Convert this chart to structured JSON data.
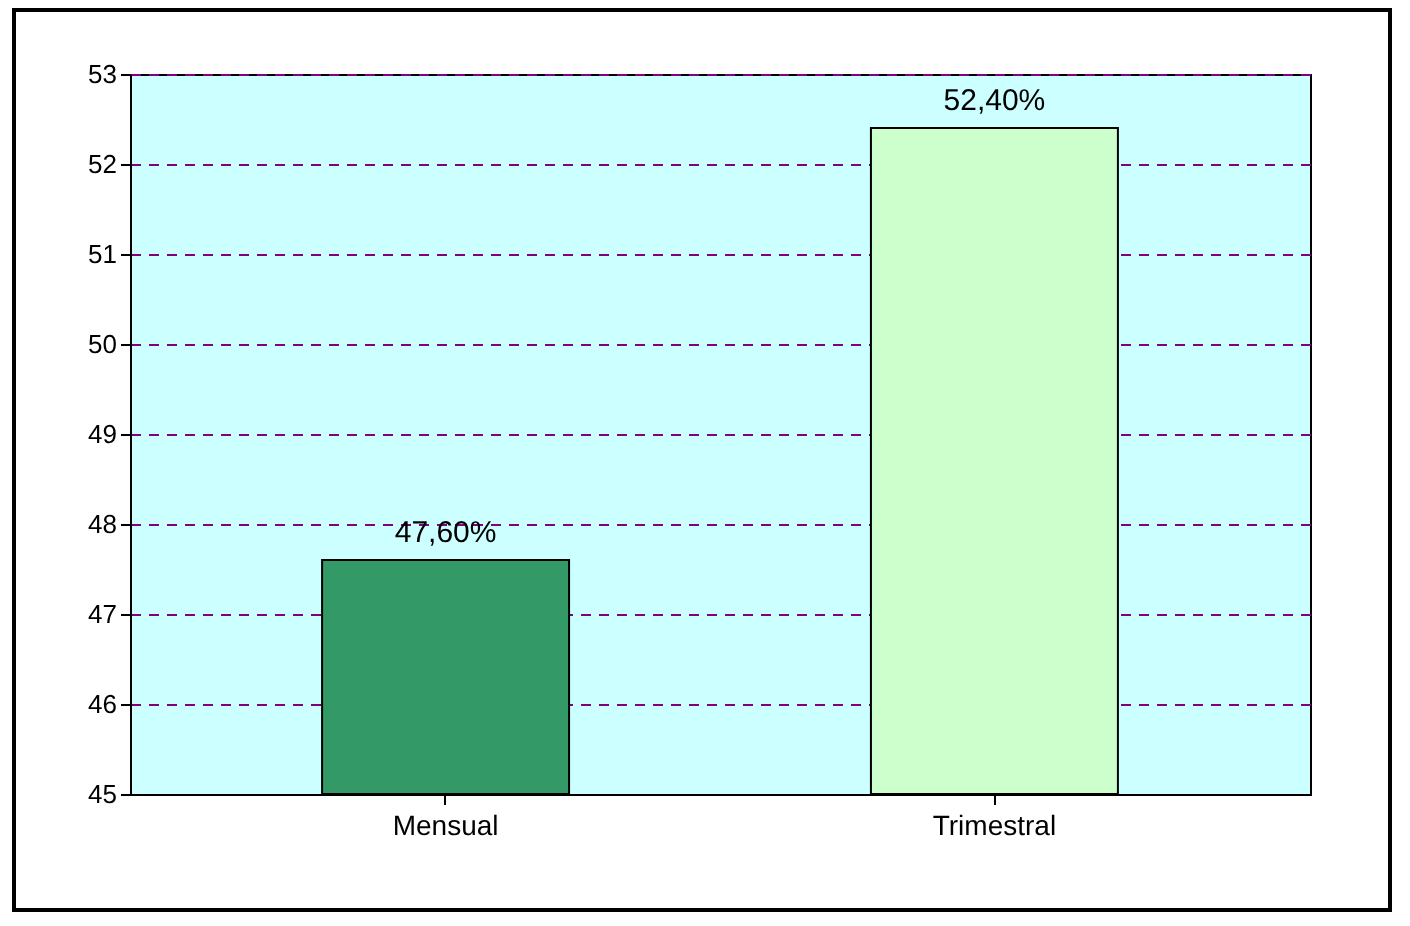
{
  "chart_data": {
    "type": "bar",
    "categories": [
      "Mensual",
      "Trimestral"
    ],
    "values": [
      47.6,
      52.4
    ],
    "colors": [
      "#339966",
      "#ccffcc"
    ],
    "value_labels": [
      "47,60%",
      "52,40%"
    ],
    "ylim": [
      45,
      53
    ],
    "yticks": [
      45,
      46,
      47,
      48,
      49,
      50,
      51,
      52,
      53
    ],
    "grid": "y",
    "line_style": "dashed"
  }
}
